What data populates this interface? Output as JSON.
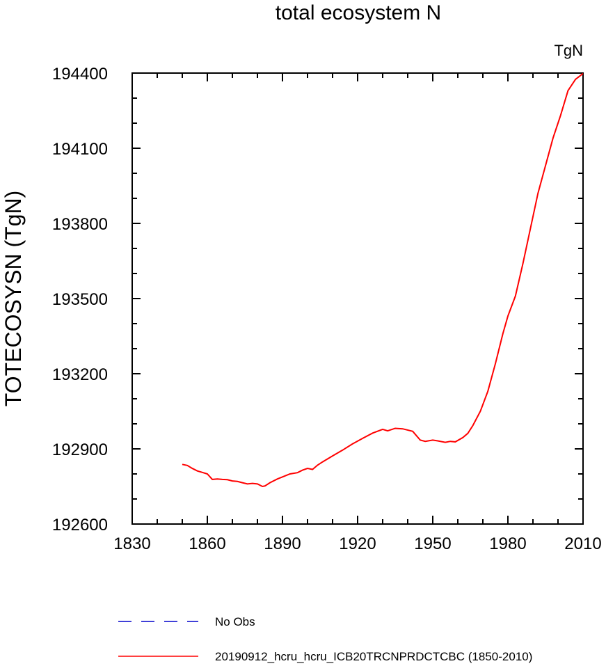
{
  "chart_data": {
    "type": "line",
    "title": "total ecosystem N",
    "units_label": "TgN",
    "xlabel": "",
    "ylabel": "TOTECOSYSN  (TgN)",
    "xlim": [
      1830,
      2010
    ],
    "ylim": [
      192600,
      194400
    ],
    "x_ticks": [
      1830,
      1860,
      1890,
      1920,
      1950,
      1980,
      2010
    ],
    "y_ticks": [
      192600,
      192900,
      193200,
      193500,
      193800,
      194100,
      194400
    ],
    "x_tick_labels": [
      "1830",
      "1860",
      "1890",
      "1920",
      "1950",
      "1980",
      "2010"
    ],
    "y_tick_labels": [
      "192600",
      "192900",
      "193200",
      "193500",
      "193800",
      "194100",
      "194400"
    ],
    "x_minor_step": 10,
    "y_minor_step": 100,
    "grid": false,
    "legend_position": "bottom",
    "series": [
      {
        "name": "No Obs",
        "color": "#0000cc",
        "dash": "dashed",
        "x": [],
        "y": []
      },
      {
        "name": "20190912_hcru_hcru_ICB20TRCNPRDCTCBC (1850-2010)",
        "color": "#ff0000",
        "dash": "solid",
        "x": [
          1850,
          1852,
          1854,
          1856,
          1858,
          1860,
          1862,
          1864,
          1866,
          1868,
          1870,
          1872,
          1874,
          1876,
          1878,
          1880,
          1882,
          1883,
          1885,
          1888,
          1890,
          1893,
          1896,
          1898,
          1900,
          1902,
          1904,
          1906,
          1910,
          1914,
          1918,
          1922,
          1926,
          1930,
          1932,
          1935,
          1938,
          1942,
          1945,
          1947,
          1950,
          1952,
          1955,
          1957,
          1959,
          1962,
          1964,
          1966,
          1969,
          1972,
          1975,
          1978,
          1980,
          1983,
          1986,
          1989,
          1992,
          1995,
          1998,
          2001,
          2004,
          2007,
          2010
        ],
        "y": [
          192838,
          192834,
          192822,
          192812,
          192806,
          192800,
          192778,
          192780,
          192778,
          192777,
          192772,
          192770,
          192765,
          192760,
          192762,
          192760,
          192750,
          192752,
          192765,
          192780,
          192788,
          192800,
          192805,
          192815,
          192822,
          192818,
          192835,
          192848,
          192872,
          192895,
          192920,
          192942,
          192963,
          192978,
          192972,
          192982,
          192980,
          192970,
          192935,
          192930,
          192935,
          192932,
          192926,
          192930,
          192928,
          192945,
          192962,
          192993,
          193050,
          193130,
          193240,
          193360,
          193430,
          193510,
          193640,
          193780,
          193920,
          194030,
          194140,
          194230,
          194330,
          194375,
          194398
        ]
      }
    ]
  }
}
